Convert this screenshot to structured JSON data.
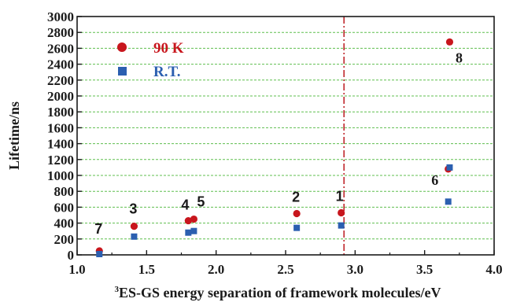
{
  "chart_data": {
    "type": "scatter",
    "title": "",
    "xlabel_sup": "3",
    "xlabel": "ES-GS energy separation of framework molecules/eV",
    "ylabel": "Lifetime/ns",
    "xlim": [
      1.0,
      4.0
    ],
    "ylim": [
      0,
      3000
    ],
    "x_ticks": [
      1.0,
      1.5,
      2.0,
      2.5,
      3.0,
      3.5,
      4.0
    ],
    "x_tick_labels": [
      "1.0",
      "1.5",
      "2.0",
      "2.5",
      "3.0",
      "3.5",
      "4.0"
    ],
    "y_ticks": [
      0,
      200,
      400,
      600,
      800,
      1000,
      1200,
      1400,
      1600,
      1800,
      2000,
      2200,
      2400,
      2600,
      2800,
      3000
    ],
    "y_tick_labels": [
      "0",
      "200",
      "400",
      "600",
      "800",
      "1000",
      "1200",
      "1400",
      "1600",
      "1800",
      "2000",
      "2200",
      "2400",
      "2600",
      "2800",
      "3000"
    ],
    "grid": "horizontal dashed",
    "legend_position": "top-left",
    "reference_line_x": 2.92,
    "series": [
      {
        "name": "90 K",
        "marker": "circle",
        "color": "#c8161d",
        "points": [
          {
            "x": 1.16,
            "y": 50
          },
          {
            "x": 1.41,
            "y": 360
          },
          {
            "x": 1.8,
            "y": 430
          },
          {
            "x": 1.84,
            "y": 450
          },
          {
            "x": 2.58,
            "y": 520
          },
          {
            "x": 2.9,
            "y": 530
          },
          {
            "x": 3.67,
            "y": 1080
          },
          {
            "x": 3.68,
            "y": 2680
          }
        ]
      },
      {
        "name": "R.T.",
        "marker": "square",
        "color": "#2b5fb0",
        "points": [
          {
            "x": 1.16,
            "y": 10
          },
          {
            "x": 1.41,
            "y": 230
          },
          {
            "x": 1.8,
            "y": 280
          },
          {
            "x": 1.84,
            "y": 300
          },
          {
            "x": 2.58,
            "y": 340
          },
          {
            "x": 2.9,
            "y": 370
          },
          {
            "x": 3.67,
            "y": 670
          },
          {
            "x": 3.68,
            "y": 1100
          }
        ]
      }
    ],
    "point_labels": [
      {
        "text": "7",
        "x": 1.16,
        "y": 50
      },
      {
        "text": "3",
        "x": 1.41,
        "y": 360
      },
      {
        "text": "4",
        "x": 1.8,
        "y": 430
      },
      {
        "text": "5",
        "x": 1.84,
        "y": 450
      },
      {
        "text": "2",
        "x": 2.58,
        "y": 520
      },
      {
        "text": "1",
        "x": 2.9,
        "y": 530
      },
      {
        "text": "6",
        "x": 3.67,
        "y": 1080
      },
      {
        "text": "8",
        "x": 3.68,
        "y": 2680
      }
    ]
  }
}
